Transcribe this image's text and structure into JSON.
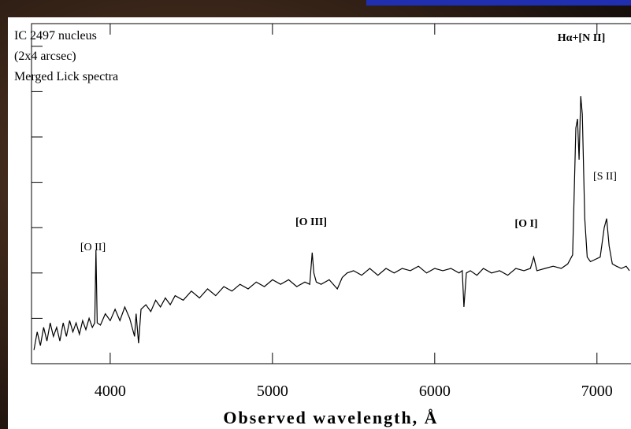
{
  "chart_data": {
    "type": "line",
    "annotations": [
      "IC 2497 nucleus",
      "(2x4 arcsec)",
      "Merged Lick spectra"
    ],
    "line_labels": [
      "[O II]",
      "[O III]",
      "[O I]",
      "Hα+[N II]",
      "[S II]"
    ],
    "xlabel": "Observed wavelength, Å",
    "xlim": [
      3515,
      7205
    ],
    "xticks": [
      4000,
      5000,
      6000,
      7000
    ],
    "ylim": [
      0,
      7.5
    ],
    "yticks": [
      0,
      1,
      2,
      3,
      4,
      5,
      6,
      7
    ],
    "series": [
      {
        "color": "#000000",
        "x": [
          3530,
          3550,
          3570,
          3590,
          3610,
          3630,
          3650,
          3670,
          3690,
          3710,
          3730,
          3750,
          3770,
          3790,
          3810,
          3830,
          3850,
          3870,
          3890,
          3905,
          3912,
          3920,
          3940,
          3970,
          4000,
          4030,
          4060,
          4090,
          4120,
          4150,
          4160,
          4175,
          4190,
          4220,
          4250,
          4280,
          4310,
          4340,
          4370,
          4400,
          4450,
          4500,
          4550,
          4600,
          4650,
          4700,
          4750,
          4800,
          4850,
          4900,
          4950,
          5000,
          5050,
          5100,
          5150,
          5200,
          5230,
          5245,
          5255,
          5270,
          5300,
          5350,
          5400,
          5430,
          5460,
          5500,
          5550,
          5600,
          5650,
          5700,
          5750,
          5800,
          5850,
          5900,
          5950,
          6000,
          6050,
          6100,
          6150,
          6170,
          6180,
          6195,
          6220,
          6260,
          6300,
          6350,
          6400,
          6450,
          6500,
          6550,
          6590,
          6610,
          6630,
          6680,
          6730,
          6780,
          6820,
          6850,
          6870,
          6880,
          6890,
          6900,
          6910,
          6925,
          6940,
          6960,
          6990,
          7020,
          7045,
          7060,
          7075,
          7095,
          7120,
          7150,
          7180,
          7200
        ],
        "values": [
          0.3,
          0.7,
          0.4,
          0.8,
          0.5,
          0.9,
          0.6,
          0.8,
          0.5,
          0.9,
          0.6,
          0.95,
          0.7,
          0.9,
          0.65,
          0.95,
          0.75,
          1.0,
          0.8,
          0.9,
          2.5,
          0.9,
          0.85,
          1.1,
          0.95,
          1.2,
          0.95,
          1.25,
          1.0,
          0.6,
          1.1,
          0.45,
          1.2,
          1.3,
          1.15,
          1.4,
          1.25,
          1.45,
          1.3,
          1.5,
          1.4,
          1.6,
          1.45,
          1.65,
          1.5,
          1.7,
          1.6,
          1.75,
          1.65,
          1.8,
          1.7,
          1.85,
          1.75,
          1.85,
          1.7,
          1.8,
          1.75,
          2.45,
          2.0,
          1.8,
          1.75,
          1.85,
          1.65,
          1.9,
          2.0,
          2.05,
          1.95,
          2.1,
          1.95,
          2.1,
          2.0,
          2.1,
          2.05,
          2.15,
          2.0,
          2.1,
          2.05,
          2.1,
          2.0,
          2.05,
          1.25,
          2.0,
          2.05,
          1.95,
          2.1,
          2.0,
          2.05,
          1.95,
          2.1,
          2.05,
          2.1,
          2.35,
          2.05,
          2.1,
          2.15,
          2.1,
          2.2,
          2.4,
          5.2,
          5.4,
          4.5,
          5.9,
          5.5,
          3.2,
          2.35,
          2.25,
          2.3,
          2.35,
          3.0,
          3.2,
          2.6,
          2.2,
          2.15,
          2.1,
          2.15,
          2.05
        ]
      }
    ]
  }
}
